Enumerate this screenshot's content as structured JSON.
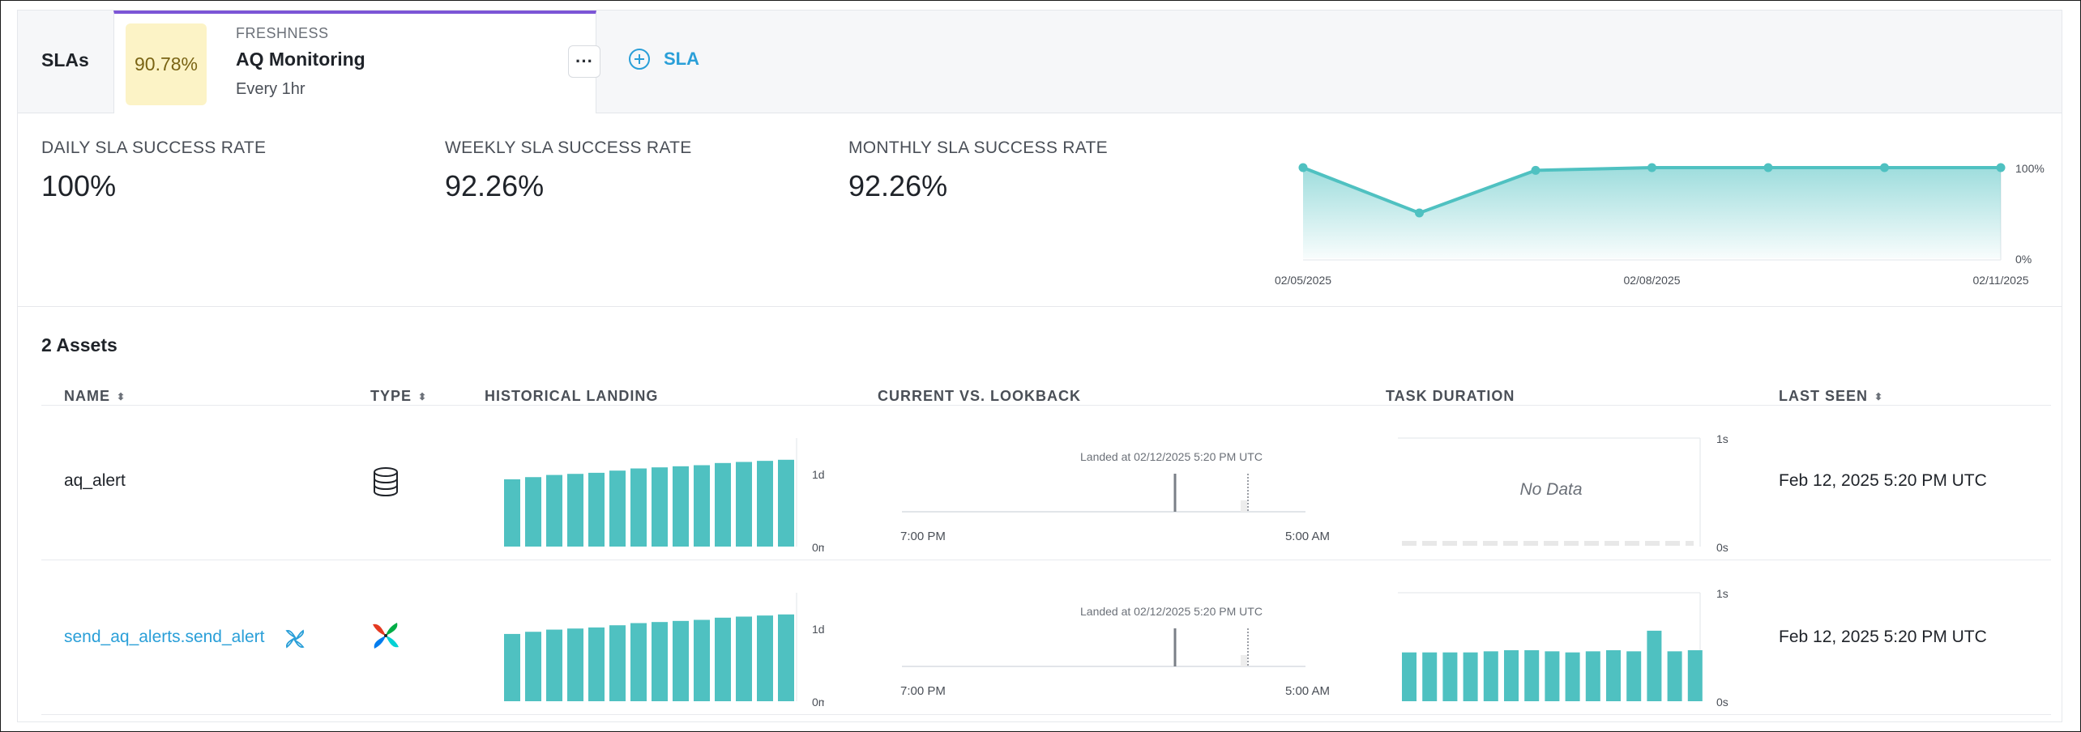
{
  "tabbar": {
    "slas_label": "SLAs",
    "card": {
      "percent": "90.78%",
      "type": "FRESHNESS",
      "title": "AQ Monitoring",
      "schedule": "Every 1hr",
      "more_label": "···",
      "accent": "#7c55d6"
    },
    "add_sla_label": "SLA"
  },
  "rates": [
    {
      "label": "DAILY SLA SUCCESS RATE",
      "value": "100%"
    },
    {
      "label": "WEEKLY SLA SUCCESS RATE",
      "value": "92.26%"
    },
    {
      "label": "MONTHLY SLA SUCCESS RATE",
      "value": "92.26%"
    }
  ],
  "trend_chart": {
    "type": "area",
    "x_labels": [
      "02/05/2025",
      "02/08/2025",
      "02/11/2025"
    ],
    "y_labels": [
      "100%",
      "0%"
    ],
    "ylim": [
      0,
      100
    ],
    "values": [
      100,
      50,
      97,
      100,
      100,
      100,
      100
    ],
    "color": "#4fc1c1"
  },
  "assets": {
    "title": "2 Assets",
    "columns": {
      "name": "NAME",
      "type": "TYPE",
      "historical": "HISTORICAL LANDING",
      "current": "CURRENT VS. LOOKBACK",
      "duration": "TASK DURATION",
      "last_seen": "LAST SEEN"
    },
    "rows": [
      {
        "name": "aq_alert",
        "type_icon": "database-icon",
        "historical": {
          "y_top": "1d",
          "y_bottom": "0m",
          "values": [
            0.62,
            0.64,
            0.66,
            0.67,
            0.68,
            0.7,
            0.72,
            0.73,
            0.74,
            0.75,
            0.77,
            0.78,
            0.79,
            0.8
          ]
        },
        "current": {
          "landed": "Landed at 02/12/2025 5:20 PM UTC",
          "x_start": "7:00 PM",
          "x_end": "5:00 AM"
        },
        "duration": {
          "y_top": "1s",
          "y_bottom": "0s",
          "no_data": "No Data"
        },
        "last_seen": "Feb 12, 2025 5:20 PM UTC"
      },
      {
        "name": "send_aq_alerts.send_alert",
        "type_icon": "airflow-icon",
        "historical": {
          "y_top": "1d",
          "y_bottom": "0m",
          "values": [
            0.62,
            0.64,
            0.66,
            0.67,
            0.68,
            0.7,
            0.72,
            0.73,
            0.74,
            0.75,
            0.77,
            0.78,
            0.79,
            0.8
          ]
        },
        "current": {
          "landed": "Landed at 02/12/2025 5:20 PM UTC",
          "x_start": "7:00 PM",
          "x_end": "5:00 AM"
        },
        "duration": {
          "y_top": "1s",
          "y_bottom": "0s",
          "values": [
            0.45,
            0.45,
            0.45,
            0.45,
            0.46,
            0.47,
            0.47,
            0.46,
            0.45,
            0.46,
            0.47,
            0.46,
            0.65,
            0.46,
            0.47
          ]
        },
        "last_seen": "Feb 12, 2025 5:20 PM UTC"
      }
    ]
  }
}
